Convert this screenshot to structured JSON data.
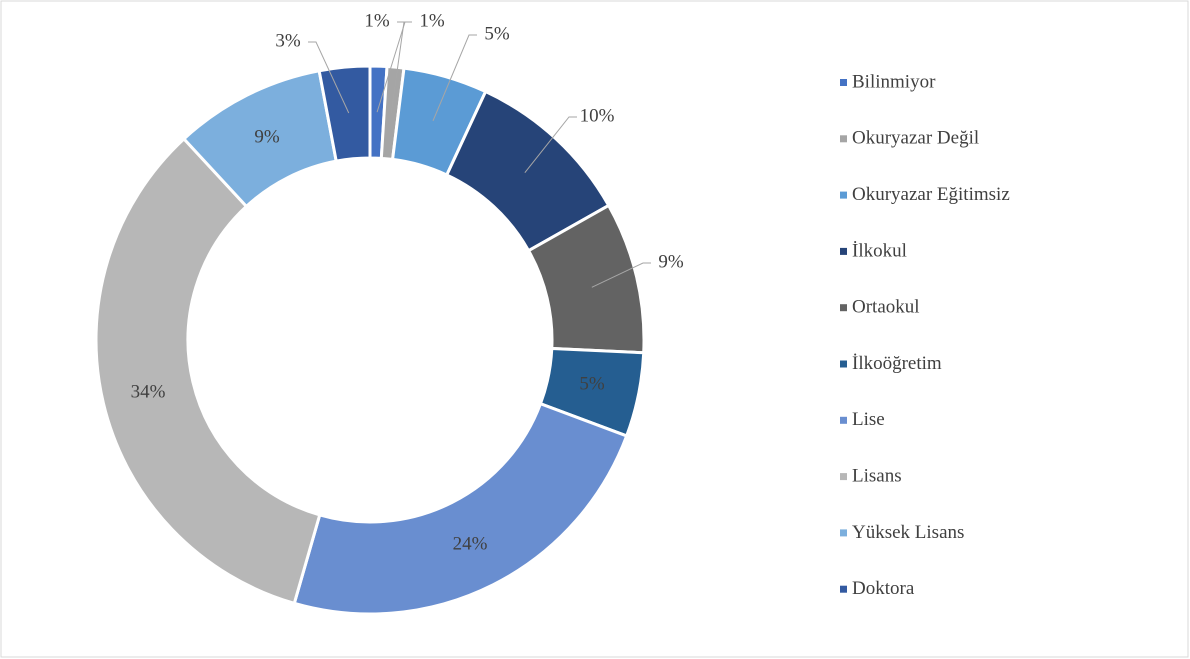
{
  "chart_data": {
    "type": "donut",
    "categories": [
      "Bilinmiyor",
      "Okuryazar Değil",
      "Okuryazar Eğitimsiz",
      "İlkokul",
      "Ortaokul",
      "İlkoöğretim",
      "Lise",
      "Lisans",
      "Yüksek Lisans",
      "Doktora"
    ],
    "values": [
      1,
      1,
      5,
      10,
      9,
      5,
      24,
      34,
      9,
      3
    ],
    "value_labels": [
      "1%",
      "1%",
      "5%",
      "10%",
      "9%",
      "5%",
      "24%",
      "34%",
      "9%",
      "3%"
    ],
    "colors": [
      "#4472c4",
      "#a5a5a5",
      "#5b9bd5",
      "#264478",
      "#636363",
      "#255e91",
      "#698ed0",
      "#b7b7b7",
      "#7cafdd",
      "#335aa1"
    ],
    "legend": "right"
  }
}
